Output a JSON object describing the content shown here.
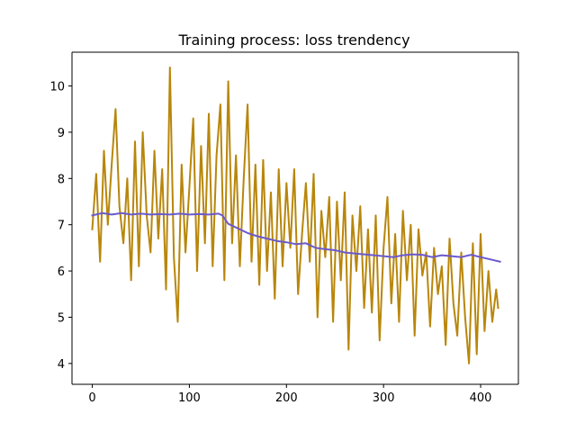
{
  "chart_data": {
    "type": "line",
    "title": "Training process: loss trendency",
    "xlabel": "",
    "ylabel": "",
    "xlim": [
      -20.9,
      438.9
    ],
    "ylim": [
      3.55,
      10.73
    ],
    "x_ticks": [
      0,
      100,
      200,
      300,
      400
    ],
    "y_ticks": [
      4,
      5,
      6,
      7,
      8,
      9,
      10
    ],
    "x_tick_labels": [
      "0",
      "100",
      "200",
      "300",
      "400"
    ],
    "y_tick_labels": [
      "4",
      "5",
      "6",
      "7",
      "8",
      "9",
      "10"
    ],
    "grid": false,
    "legend": "none",
    "series": [
      {
        "name": "",
        "color": "#B8860B",
        "x": [
          0,
          4,
          8,
          12,
          16,
          20,
          24,
          28,
          32,
          36,
          40,
          44,
          48,
          52,
          56,
          60,
          64,
          68,
          72,
          76,
          80,
          84,
          88,
          92,
          96,
          100,
          104,
          108,
          112,
          116,
          120,
          124,
          128,
          132,
          136,
          140,
          144,
          148,
          152,
          156,
          160,
          164,
          168,
          172,
          176,
          180,
          184,
          188,
          192,
          196,
          200,
          204,
          208,
          212,
          216,
          220,
          224,
          228,
          232,
          236,
          240,
          244,
          248,
          252,
          256,
          260,
          264,
          268,
          272,
          276,
          280,
          284,
          288,
          292,
          296,
          300,
          304,
          308,
          312,
          316,
          320,
          324,
          328,
          332,
          336,
          340,
          344,
          348,
          352,
          356,
          360,
          364,
          368,
          372,
          376,
          380,
          384,
          388,
          392,
          396,
          400,
          404,
          408,
          412,
          416,
          418
        ],
        "y": [
          6.9,
          8.1,
          6.2,
          8.6,
          7.0,
          8.3,
          9.5,
          7.4,
          6.6,
          8.0,
          5.8,
          8.8,
          6.1,
          9.0,
          7.2,
          6.4,
          8.6,
          6.7,
          8.2,
          5.6,
          10.4,
          6.3,
          4.9,
          8.3,
          6.4,
          7.8,
          9.3,
          6.0,
          8.7,
          6.6,
          9.4,
          6.1,
          8.5,
          9.6,
          5.8,
          10.1,
          6.6,
          8.5,
          6.1,
          8.0,
          9.6,
          6.2,
          8.3,
          5.7,
          8.4,
          6.0,
          7.7,
          5.4,
          8.2,
          6.1,
          7.9,
          6.5,
          8.2,
          5.5,
          6.8,
          7.9,
          6.2,
          8.1,
          5.0,
          7.3,
          6.3,
          7.6,
          4.9,
          7.5,
          5.8,
          7.7,
          4.3,
          7.2,
          6.0,
          7.4,
          5.2,
          6.9,
          5.1,
          7.2,
          4.5,
          6.5,
          7.6,
          5.3,
          6.8,
          4.9,
          7.3,
          5.8,
          7.0,
          4.6,
          6.9,
          5.9,
          6.4,
          4.8,
          6.5,
          5.5,
          6.1,
          4.4,
          6.7,
          5.3,
          4.6,
          6.4,
          5.0,
          4.0,
          6.6,
          4.2,
          6.8,
          4.7,
          6.0,
          4.9,
          5.6,
          5.2
        ]
      },
      {
        "name": "",
        "color": "#6A5ACD",
        "x": [
          0,
          10,
          20,
          30,
          40,
          50,
          60,
          70,
          80,
          90,
          100,
          110,
          120,
          130,
          134,
          140,
          150,
          160,
          170,
          180,
          190,
          200,
          210,
          220,
          230,
          240,
          250,
          260,
          270,
          280,
          290,
          300,
          310,
          320,
          330,
          340,
          350,
          360,
          370,
          380,
          390,
          400,
          410,
          420
        ],
        "y": [
          7.2,
          7.25,
          7.22,
          7.25,
          7.22,
          7.24,
          7.22,
          7.23,
          7.22,
          7.24,
          7.22,
          7.23,
          7.22,
          7.24,
          7.2,
          7.02,
          6.92,
          6.82,
          6.75,
          6.7,
          6.65,
          6.62,
          6.58,
          6.6,
          6.5,
          6.47,
          6.45,
          6.4,
          6.38,
          6.36,
          6.34,
          6.32,
          6.3,
          6.34,
          6.36,
          6.35,
          6.3,
          6.34,
          6.32,
          6.3,
          6.35,
          6.3,
          6.25,
          6.2
        ]
      }
    ]
  }
}
